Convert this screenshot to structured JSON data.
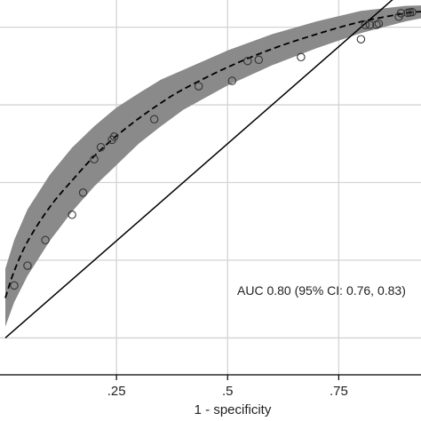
{
  "chart_data": {
    "type": "scatter",
    "xlabel": "1 - specificity",
    "ylabel": "",
    "xlim": [
      -0.012,
      0.935
    ],
    "ylim": [
      -0.095,
      0.87
    ],
    "grid": true,
    "x_ticks": [
      {
        "value": 0.25,
        "label": ".25"
      },
      {
        "value": 0.5,
        "label": ".5"
      },
      {
        "value": 0.75,
        "label": ".75"
      }
    ],
    "y_gridlines": [
      0.0,
      0.2,
      0.4,
      0.6,
      0.8
    ],
    "annotation": "AUC 0.80 (95% CI: 0.76, 0.83)",
    "colors": {
      "ci_band": "#8a8a8a",
      "fitted_curve": "#000000",
      "reference_line": "#000000",
      "points": "#333333",
      "grid": "#d4d4d4"
    },
    "series": [
      {
        "kind": "ci-band",
        "x": [
          0.0,
          0.02,
          0.05,
          0.1,
          0.15,
          0.2,
          0.25,
          0.3,
          0.35,
          0.4,
          0.5,
          0.6,
          0.7,
          0.8,
          0.9,
          0.935
        ],
        "lower": [
          0.029,
          0.092,
          0.16,
          0.25,
          0.325,
          0.39,
          0.445,
          0.5,
          0.545,
          0.587,
          0.65,
          0.702,
          0.746,
          0.785,
          0.815,
          0.823
        ],
        "upper": [
          0.178,
          0.252,
          0.331,
          0.42,
          0.49,
          0.545,
          0.593,
          0.63,
          0.665,
          0.69,
          0.74,
          0.782,
          0.815,
          0.842,
          0.855,
          0.856
        ]
      },
      {
        "kind": "fitted-curve",
        "x": [
          0.0,
          0.02,
          0.05,
          0.1,
          0.15,
          0.2,
          0.25,
          0.3,
          0.35,
          0.4,
          0.5,
          0.6,
          0.7,
          0.8,
          0.9,
          0.935
        ],
        "y": [
          0.103,
          0.172,
          0.248,
          0.337,
          0.405,
          0.468,
          0.52,
          0.565,
          0.605,
          0.64,
          0.697,
          0.744,
          0.782,
          0.814,
          0.836,
          0.84
        ]
      },
      {
        "kind": "reference-line",
        "x": [
          0.0,
          0.935
        ],
        "y": [
          0.0,
          0.935
        ]
      },
      {
        "kind": "observed-points",
        "x": [
          0.02,
          0.05,
          0.09,
          0.15,
          0.175,
          0.2,
          0.215,
          0.24,
          0.245,
          0.335,
          0.435,
          0.51,
          0.545,
          0.57,
          0.665,
          0.8,
          0.81,
          0.82,
          0.835,
          0.84,
          0.885,
          0.89,
          0.905,
          0.91,
          0.915
        ],
        "y": [
          0.135,
          0.186,
          0.252,
          0.317,
          0.374,
          0.46,
          0.491,
          0.51,
          0.518,
          0.563,
          0.648,
          0.662,
          0.713,
          0.716,
          0.723,
          0.769,
          0.806,
          0.806,
          0.806,
          0.809,
          0.827,
          0.836,
          0.837,
          0.838,
          0.839
        ]
      }
    ]
  }
}
